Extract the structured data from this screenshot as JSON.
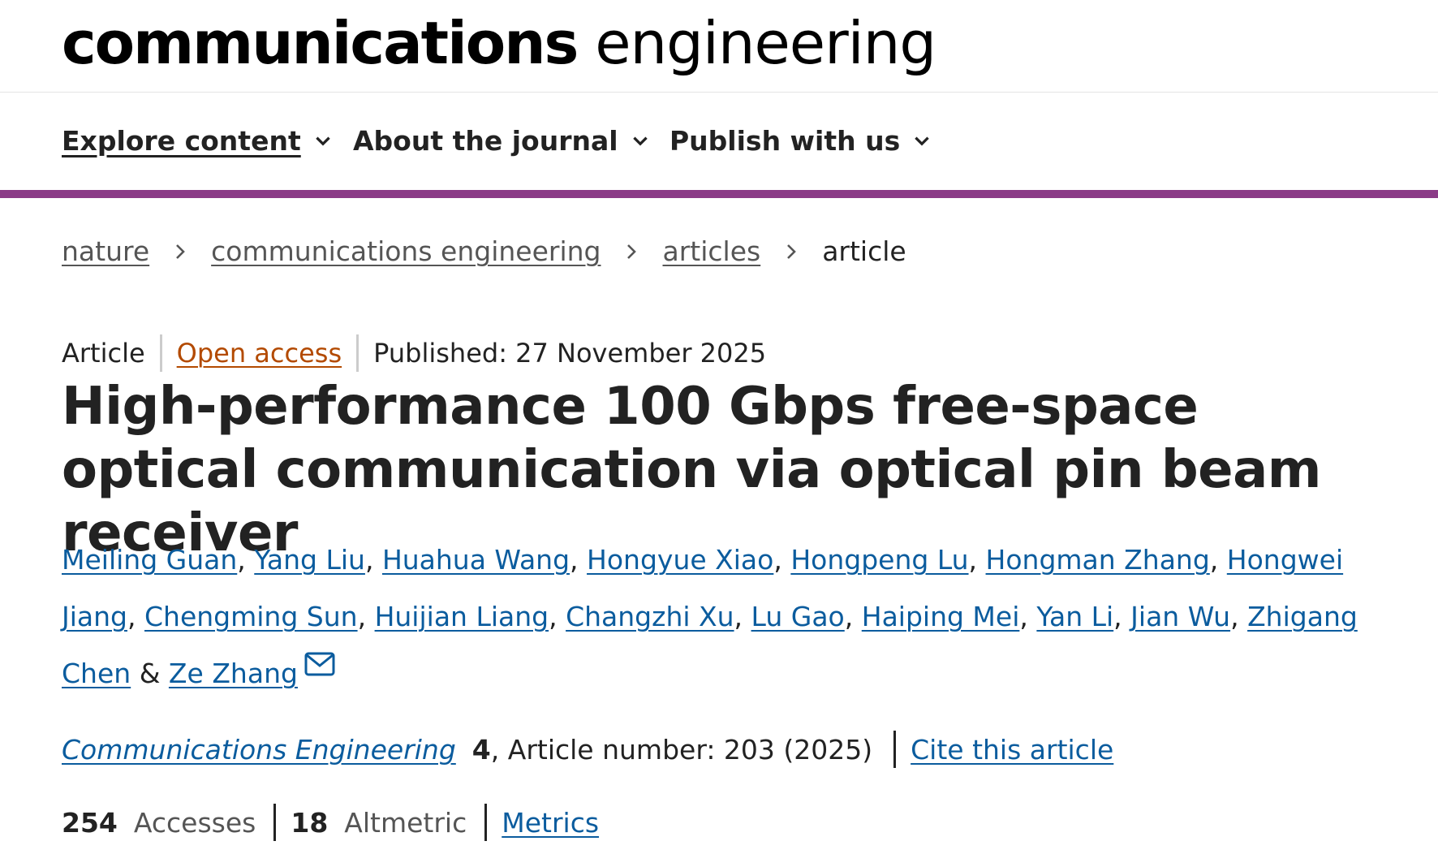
{
  "header": {
    "logo_bold": "communications",
    "logo_light": "engineering"
  },
  "nav": {
    "items": [
      {
        "label": "Explore content",
        "icon": "chevron-down-icon"
      },
      {
        "label": "About the journal",
        "icon": "chevron-down-icon"
      },
      {
        "label": "Publish with us",
        "icon": "chevron-down-icon"
      }
    ],
    "accent_color": "#8b3b87"
  },
  "breadcrumb": {
    "items": [
      "nature",
      "communications engineering",
      "articles"
    ],
    "current": "article",
    "separator_icon": "chevron-right-icon"
  },
  "article_meta": {
    "type": "Article",
    "access": "Open access",
    "published": "Published: 27 November 2025",
    "access_color": "#b34a00"
  },
  "title": "High-performance 100 Gbps free-space optical communication via optical pin beam receiver",
  "authors": {
    "names": [
      "Meiling Guan",
      "Yang Liu",
      "Huahua Wang",
      "Hongyue Xiao",
      "Hongpeng Lu",
      "Hongman Zhang",
      "Hongwei Jiang",
      "Chengming Sun",
      "Huijian Liang",
      "Changzhi Xu",
      "Lu Gao",
      "Haiping Mei",
      "Yan Li",
      "Jian Wu",
      "Zhigang Chen"
    ],
    "separator": ",",
    "conjunction": "&",
    "last": "Ze Zhang",
    "last_icon": "mail-icon",
    "link_color": "#0b5c9e"
  },
  "citation": {
    "journal": "Communications Engineering",
    "volume": "4",
    "article_number": ", Article number: 203 (2025)",
    "cite_link": "Cite this article"
  },
  "metrics": {
    "accesses_count": "254",
    "accesses_label": "Accesses",
    "altmetric_count": "18",
    "altmetric_label": "Altmetric",
    "metrics_link": "Metrics"
  }
}
